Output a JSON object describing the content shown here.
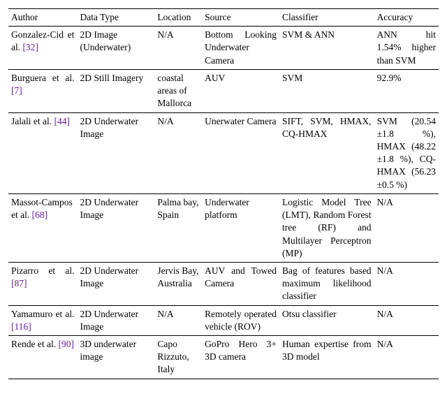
{
  "columns": [
    "Author",
    "Data Type",
    "Location",
    "Source",
    "Classifier",
    "Accuracy"
  ],
  "rows": [
    {
      "author_text": "Gonzalez-Cid et al. ",
      "author_ref": "[32]",
      "data_type": "2D Image (Underwater)",
      "location": "N/A",
      "source": "Bottom Looking Underwater Camera",
      "classifier": "SVM & ANN",
      "accuracy": "ANN hit 1.54% higher than SVM"
    },
    {
      "author_text": "Burguera et al. ",
      "author_ref": "[7]",
      "data_type": "2D Still Imagery",
      "location": "coastal areas of Mallorca",
      "source": "AUV",
      "classifier": "SVM",
      "accuracy": "92.9%"
    },
    {
      "author_text": "Jalali et al. ",
      "author_ref": "[44]",
      "data_type": "2D Underwater Image",
      "location": "N/A",
      "source": "Unerwater Camera",
      "classifier": "SIFT, SVM, HMAX, CQ-HMAX",
      "accuracy": "SVM (20.54 ±1.8 %), HMAX (48.22 ±1.8 %), CQ-HMAX (56.23 ±0.5 %)"
    },
    {
      "author_text": "Massot-Campos et al. ",
      "author_ref": "[68]",
      "data_type": "2D Underwater Image",
      "location": "Palma bay, Spain",
      "source": "Underwater platform",
      "classifier": "Logistic Model Tree (LMT), Random Forest tree (RF) and Multilayer Perceptron (MP)",
      "accuracy": "N/A"
    },
    {
      "author_text": "Pizarro et al. ",
      "author_ref": "[87]",
      "data_type": "2D Underwater Image",
      "location": "Jervis Bay, Australia",
      "source": "AUV and Towed Camera",
      "classifier": "Bag of features based maximum likelihood classifier",
      "accuracy": "N/A"
    },
    {
      "author_text": "Yamamuro et al. ",
      "author_ref": "[116]",
      "data_type": "2D Underwater Image",
      "location": "N/A",
      "source": "Remotely operated vehicle (ROV)",
      "classifier": "Otsu classifier",
      "accuracy": "N/A"
    },
    {
      "author_text": "Rende et al. ",
      "author_ref": "[90]",
      "data_type": "3D underwater image",
      "location": "Capo Rizzuto, Italy",
      "source": "GoPro Hero 3+ 3D camera",
      "classifier": "Human expertise from 3D model",
      "accuracy": "N/A"
    }
  ]
}
